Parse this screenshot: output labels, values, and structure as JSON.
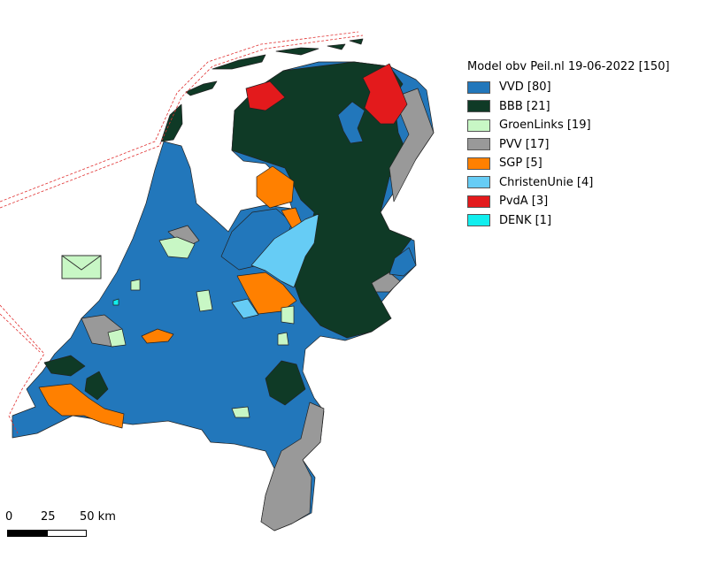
{
  "legend": {
    "title": "Model obv Peil.nl 19-06-2022 [150]",
    "items": [
      {
        "label": "VVD [80]",
        "color": "#2277bb"
      },
      {
        "label": "BBB [21]",
        "color": "#0f3a26"
      },
      {
        "label": "GroenLinks [19]",
        "color": "#c8f7c5"
      },
      {
        "label": "PVV [17]",
        "color": "#999999"
      },
      {
        "label": "SGP [5]",
        "color": "#ff8000"
      },
      {
        "label": "ChristenUnie [4]",
        "color": "#66ccf5"
      },
      {
        "label": "PvdA [3]",
        "color": "#e31a1c"
      },
      {
        "label": "DENK [1]",
        "color": "#11eeee"
      }
    ]
  },
  "scalebar": {
    "labels": [
      "0",
      "25",
      "50 km"
    ]
  },
  "icons": {
    "envelope": "envelope-icon"
  }
}
